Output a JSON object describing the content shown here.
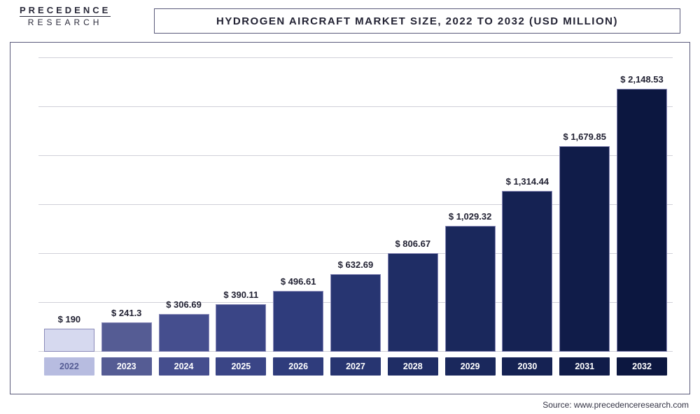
{
  "logo": {
    "top": "PRECEDENCE",
    "bottom": "RESEARCH"
  },
  "title": "HYDROGEN AIRCRAFT MARKET SIZE, 2022 TO 2032 (USD MILLION)",
  "source": "Source: www.precedenceresearch.com",
  "chart": {
    "type": "bar",
    "ylim_max": 2400,
    "grid_lines": 6,
    "background_color": "#ffffff",
    "grid_color": "#d0d0d8",
    "border_color": "#5a5a7a",
    "bar_border": "#8a8ab8",
    "label_fontsize": 13,
    "tick_fontsize": 12.5,
    "title_fontsize": 15,
    "bars": [
      {
        "year": "2022",
        "value": 190,
        "label": "$ 190",
        "fill": "#d6d9ef",
        "tick_fill": "#b7bce0"
      },
      {
        "year": "2023",
        "value": 241.3,
        "label": "$ 241.3",
        "fill": "#555c94",
        "tick_fill": "#555c94"
      },
      {
        "year": "2024",
        "value": 306.69,
        "label": "$ 306.69",
        "fill": "#454e8e",
        "tick_fill": "#454e8e"
      },
      {
        "year": "2025",
        "value": 390.11,
        "label": "$ 390.11",
        "fill": "#3a4586",
        "tick_fill": "#3a4586"
      },
      {
        "year": "2026",
        "value": 496.61,
        "label": "$ 496.61",
        "fill": "#2f3c7c",
        "tick_fill": "#2f3c7c"
      },
      {
        "year": "2027",
        "value": 632.69,
        "label": "$ 632.69",
        "fill": "#273571",
        "tick_fill": "#273571"
      },
      {
        "year": "2028",
        "value": 806.67,
        "label": "$ 806.67",
        "fill": "#1f2d65",
        "tick_fill": "#1f2d65"
      },
      {
        "year": "2029",
        "value": 1029.32,
        "label": "$ 1,029.32",
        "fill": "#1a285c",
        "tick_fill": "#1a285c"
      },
      {
        "year": "2030",
        "value": 1314.44,
        "label": "$ 1,314.44",
        "fill": "#152253",
        "tick_fill": "#152253"
      },
      {
        "year": "2031",
        "value": 1679.85,
        "label": "$ 1,679.85",
        "fill": "#101c49",
        "tick_fill": "#101c49"
      },
      {
        "year": "2032",
        "value": 2148.53,
        "label": "$ 2,148.53",
        "fill": "#0c1740",
        "tick_fill": "#0c1740"
      }
    ]
  }
}
